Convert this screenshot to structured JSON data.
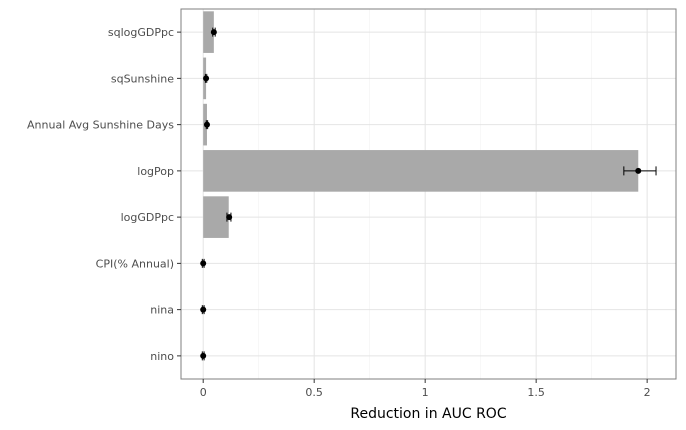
{
  "chart_data": {
    "type": "bar",
    "orientation": "horizontal",
    "title": "",
    "xlabel": "Reduction in AUC ROC",
    "ylabel": "",
    "categories": [
      "sqlogGDPpc",
      "sqSunshine",
      "Annual Avg Sunshine Days",
      "logPop",
      "logGDPpc",
      "CPI(% Annual)",
      "nina",
      "nino"
    ],
    "values": [
      0.048,
      0.013,
      0.017,
      1.96,
      0.115,
      0.0,
      0.0,
      0.0
    ],
    "point_estimates": [
      0.048,
      0.013,
      0.017,
      1.96,
      0.117,
      0.0,
      0.0,
      0.0
    ],
    "error_low": [
      0.043,
      0.01,
      0.014,
      1.895,
      0.107,
      -0.004,
      -0.004,
      -0.004
    ],
    "error_high": [
      0.054,
      0.016,
      0.02,
      2.04,
      0.125,
      0.004,
      0.004,
      0.004
    ],
    "xlim": [
      -0.1,
      2.13
    ],
    "xticks": [
      0,
      0.5,
      1,
      1.5,
      2
    ],
    "xtick_labels": [
      "0",
      "0.5",
      "1",
      "1.5",
      "2"
    ],
    "grid": true,
    "legend": "none",
    "colors": {
      "bar": "#a9a9a9",
      "point": "#000000",
      "grid_major": "#e4e4e4",
      "grid_minor": "#f2f2f2",
      "panel_border": "#7f7f7f"
    }
  }
}
